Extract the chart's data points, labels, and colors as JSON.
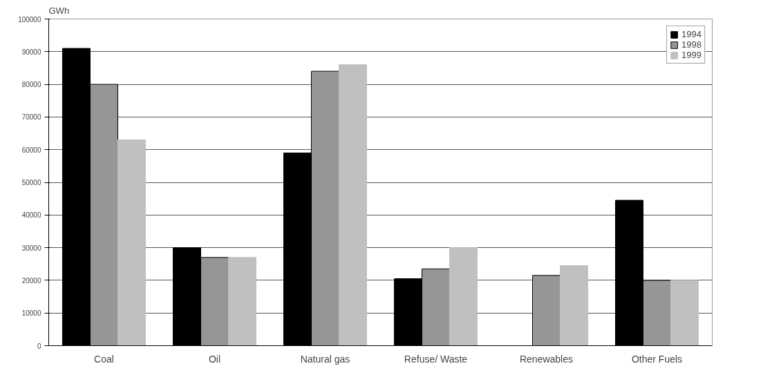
{
  "chart_data": {
    "type": "bar",
    "ylabel": "GWh",
    "categories": [
      "Coal",
      "Oil",
      "Natural gas",
      "Refuse/ Waste",
      "Renewables",
      "Other Fuels"
    ],
    "series": [
      {
        "name": "1994",
        "color": "#000000",
        "values": [
          91000,
          30000,
          59000,
          20500,
          null,
          44500
        ]
      },
      {
        "name": "1998",
        "color": "#969696",
        "values": [
          80000,
          27000,
          84000,
          23500,
          21500,
          20000
        ]
      },
      {
        "name": "1999",
        "color": "#c0c0c0",
        "values": [
          63000,
          27000,
          86000,
          30000,
          24500,
          20000
        ]
      }
    ],
    "ylim": [
      0,
      100000
    ],
    "yticks": [
      0,
      10000,
      20000,
      30000,
      40000,
      50000,
      60000,
      70000,
      80000,
      90000,
      100000
    ],
    "grid": "y",
    "legend": "top right"
  }
}
